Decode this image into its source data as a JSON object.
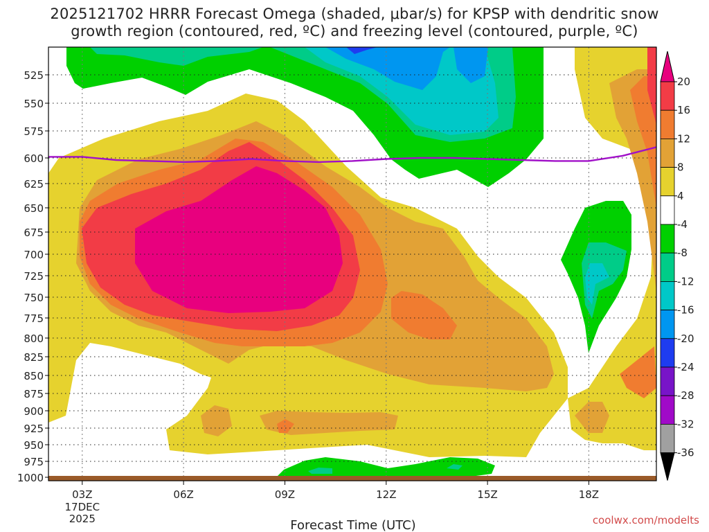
{
  "chart_data": {
    "type": "heatmap",
    "title_line1": "2025121702 HRRR Forecast Omega (shaded, μbar/s) for KPSP with dendritic snow",
    "title_line2": "growth region (contoured, red, ºC) and freezing level (contoured, purple, ºC)",
    "xlabel": "Forecast Time (UTC)",
    "x_ticks": [
      "03Z",
      "06Z",
      "09Z",
      "12Z",
      "15Z",
      "18Z"
    ],
    "x_tick_hours": [
      3,
      6,
      9,
      12,
      15,
      18
    ],
    "x_range_hours": [
      2,
      20
    ],
    "date_label_line1": "17DEC",
    "date_label_line2": "2025",
    "y_ticks": [
      525,
      550,
      575,
      600,
      625,
      650,
      675,
      700,
      725,
      750,
      775,
      800,
      825,
      850,
      875,
      900,
      925,
      950,
      975,
      1000
    ],
    "y_range_hpa": [
      500,
      1005
    ],
    "y_scale": "log-pressure",
    "colorbar": {
      "ticks": [
        20,
        16,
        12,
        8,
        4,
        -4,
        -8,
        -12,
        -16,
        -20,
        -24,
        -28,
        -32,
        -36
      ],
      "levels": [
        {
          "range": ">20",
          "color": "#e8007e"
        },
        {
          "range": "16 to 20",
          "color": "#f23c46"
        },
        {
          "range": "12 to 16",
          "color": "#f07c30"
        },
        {
          "range": "8 to 12",
          "color": "#e2a236"
        },
        {
          "range": "4 to 8",
          "color": "#e6d22e"
        },
        {
          "range": "-4 to 4",
          "color": "#ffffff"
        },
        {
          "range": "-8 to -4",
          "color": "#00d000"
        },
        {
          "range": "-12 to -8",
          "color": "#00cc88"
        },
        {
          "range": "-16 to -12",
          "color": "#00c8c8"
        },
        {
          "range": "-20 to -16",
          "color": "#0096f0"
        },
        {
          "range": "-24 to -20",
          "color": "#1e3cf0"
        },
        {
          "range": "-28 to -24",
          "color": "#7814c8"
        },
        {
          "range": "-32 to -28",
          "color": "#a00ac8"
        },
        {
          "range": "-36 to -32",
          "color": "#a0a0a0"
        },
        {
          "range": "<-36",
          "color": "#000000"
        }
      ]
    },
    "freezing_level": {
      "color": "#a010c8",
      "points_hour_hpa": [
        [
          2,
          599
        ],
        [
          3,
          599
        ],
        [
          4,
          602
        ],
        [
          5,
          603
        ],
        [
          6,
          604
        ],
        [
          7,
          603
        ],
        [
          8,
          601
        ],
        [
          9,
          603
        ],
        [
          10,
          604
        ],
        [
          11,
          603
        ],
        [
          12,
          601
        ],
        [
          13,
          600
        ],
        [
          14,
          600
        ],
        [
          15,
          601
        ],
        [
          16,
          602
        ],
        [
          17,
          603
        ],
        [
          18,
          603
        ],
        [
          19,
          598
        ],
        [
          20,
          590
        ]
      ]
    },
    "ground_color": "#9a5a28",
    "credit": "coolwx.com/modelts"
  }
}
